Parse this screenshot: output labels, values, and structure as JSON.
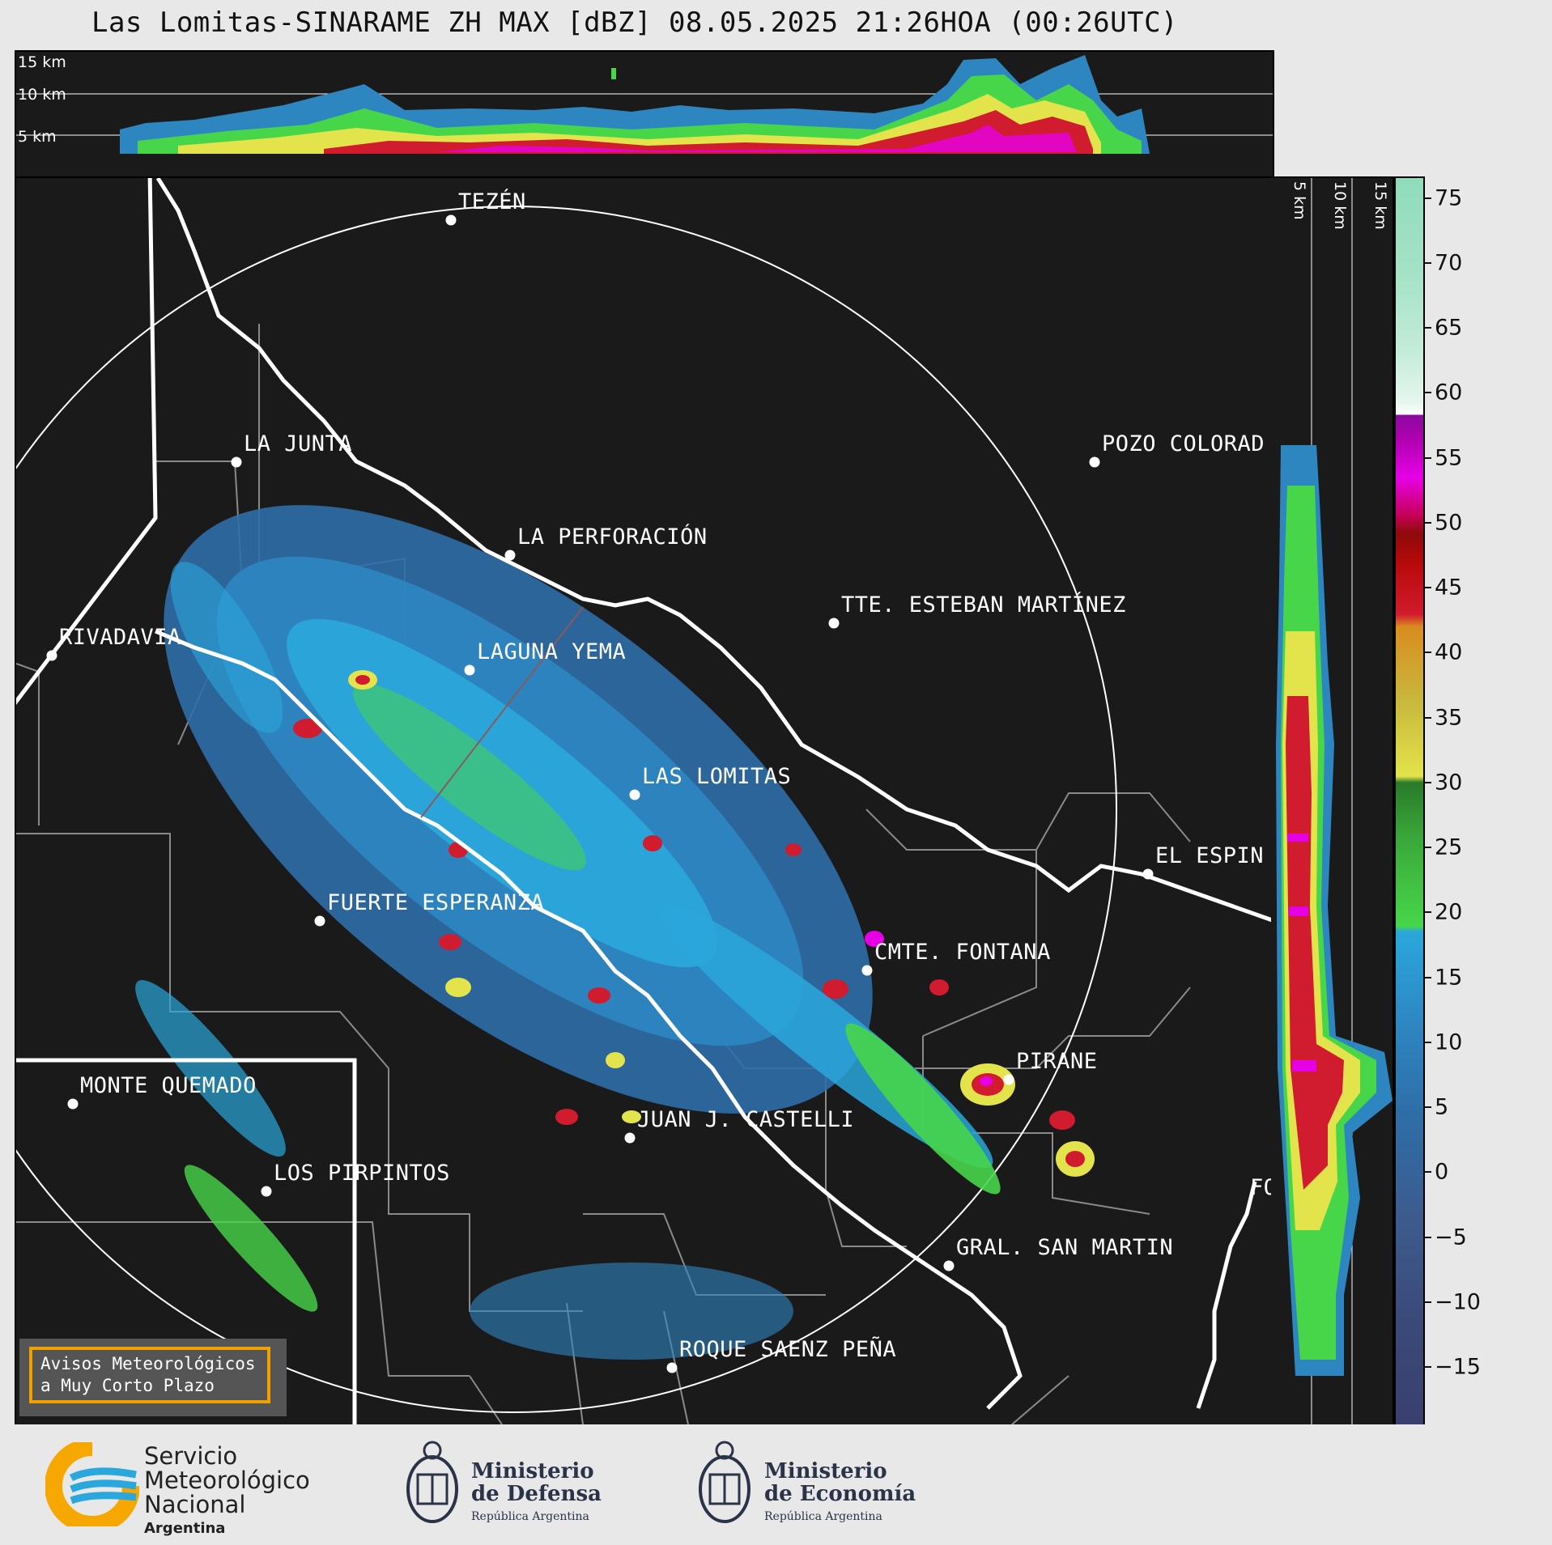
{
  "title": "Las Lomitas-SINARAME ZH MAX [dBZ] 08.05.2025 21:26HOA (00:26UTC)",
  "top_panel": {
    "height_labels": [
      "15 km",
      "10 km",
      "5 km"
    ]
  },
  "side_panel": {
    "height_labels": [
      "5 km",
      "10 km",
      "15 km"
    ]
  },
  "colorbar": {
    "unit": "dBZ",
    "ticks": [
      "75",
      "70",
      "65",
      "60",
      "55",
      "50",
      "45",
      "40",
      "35",
      "30",
      "25",
      "20",
      "15",
      "10",
      "5",
      "0",
      "−5",
      "−10",
      "−15"
    ],
    "colors": {
      "lowest": "#3a3f6e",
      "cold_blue": "#3d5a8c",
      "blue": "#2e86c1",
      "light_blue": "#2aa7dc",
      "light_green": "#47d64a",
      "green": "#2a7a2a",
      "yellow": "#e3e34b",
      "olive": "#c9b83c",
      "orange": "#d98c1f",
      "red": "#d11b2e",
      "dark_red": "#8e0a0a",
      "magenta": "#e600e6",
      "purple": "#8a0aa0",
      "white": "#ffffff",
      "mint": "#8fdcb8"
    }
  },
  "cities": [
    {
      "name": "TEZÉN"
    },
    {
      "name": "LA JUNTA"
    },
    {
      "name": "POZO COLORAD"
    },
    {
      "name": "LA PERFORACIÓN"
    },
    {
      "name": "TTE. ESTEBAN MARTÍNEZ"
    },
    {
      "name": "RIVADAVIA"
    },
    {
      "name": "LAGUNA YEMA"
    },
    {
      "name": "LAS LOMITAS"
    },
    {
      "name": "EL ESPIN"
    },
    {
      "name": "FUERTE ESPERANZA"
    },
    {
      "name": "CMTE. FONTANA"
    },
    {
      "name": "PIRANE"
    },
    {
      "name": "MONTE QUEMADO"
    },
    {
      "name": "JUAN J. CASTELLI"
    },
    {
      "name": "LOS PIRPINTOS"
    },
    {
      "name": "GRAL. SAN MARTIN"
    },
    {
      "name": "ROQUE SAENZ PEÑA"
    },
    {
      "name": "FO"
    }
  ],
  "avisos": {
    "line1": "Avisos Meteorológicos",
    "line2": "a Muy Corto Plazo"
  },
  "footer": {
    "smn": {
      "line1": "Servicio",
      "line2": "Meteorológico",
      "line3": "Nacional",
      "country": "Argentina"
    },
    "defensa": {
      "line1": "Ministerio",
      "line2": "de Defensa",
      "sub": "República Argentina"
    },
    "economia": {
      "line1": "Ministerio",
      "line2": "de Economía",
      "sub": "República Argentina"
    }
  }
}
